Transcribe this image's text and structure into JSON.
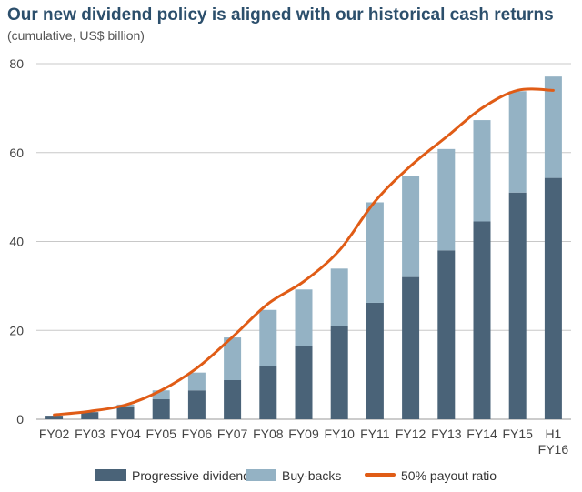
{
  "title": "Our new dividend policy is aligned with our historical cash returns",
  "subtitle": "(cumulative, US$ billion)",
  "colors": {
    "dividend": "#4a6378",
    "buybacks": "#94b2c4",
    "payout": "#e05c16",
    "grid": "#c8c8c8",
    "title": "#2c4f6c"
  },
  "legend": {
    "dividend": "Progressive dividend",
    "buybacks": "Buy-backs",
    "payout": "50% payout ratio"
  },
  "chart_data": {
    "type": "bar",
    "stacked": true,
    "categories": [
      "FY02",
      "FY03",
      "FY04",
      "FY05",
      "FY06",
      "FY07",
      "FY08",
      "FY09",
      "FY10",
      "FY11",
      "FY12",
      "FY13",
      "FY14",
      "FY15",
      "H1 FY16"
    ],
    "series": [
      {
        "name": "Progressive dividend",
        "values": [
          0.8,
          1.6,
          2.8,
          4.5,
          6.5,
          8.8,
          12.0,
          16.5,
          21.0,
          26.2,
          32.0,
          38.0,
          44.5,
          51.0,
          54.3
        ]
      },
      {
        "name": "Buy-backs",
        "values": [
          0,
          0,
          0.5,
          2.0,
          4.0,
          9.6,
          12.6,
          12.7,
          12.9,
          22.6,
          22.7,
          22.8,
          22.8,
          22.8,
          22.8
        ]
      }
    ],
    "line": {
      "name": "50% payout ratio",
      "values": [
        1.0,
        1.8,
        3.2,
        6.5,
        11.5,
        18.5,
        26.0,
        31.0,
        38.0,
        49.0,
        57.0,
        63.5,
        70.0,
        74.0,
        74.0
      ]
    },
    "ylim": [
      0,
      80
    ],
    "yticks": [
      0,
      20,
      40,
      60,
      80
    ],
    "grid": true,
    "legend_position": "bottom"
  }
}
